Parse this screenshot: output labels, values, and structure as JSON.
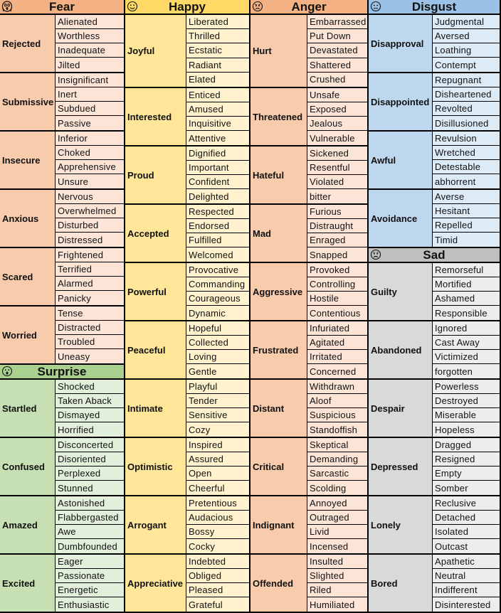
{
  "columns": [
    {
      "sections": [
        {
          "title": "Fear",
          "emoji": "scream-face",
          "colors": {
            "header": "#f4b183",
            "primary": "#f8cbad",
            "secondary": "#fce4d6"
          },
          "groups": [
            {
              "primary": "Rejected",
              "secondary": [
                "Alienated",
                "Worthless",
                "Inadequate",
                "Jilted"
              ]
            },
            {
              "primary": "Submissive",
              "secondary": [
                "Insignificant",
                "Inert",
                "Subdued",
                "Passive"
              ]
            },
            {
              "primary": "Insecure",
              "secondary": [
                "Inferior",
                "Choked",
                "Apprehensive",
                "Unsure"
              ]
            },
            {
              "primary": "Anxious",
              "secondary": [
                "Nervous",
                "Overwhelmed",
                "Disturbed",
                "Distressed"
              ]
            },
            {
              "primary": "Scared",
              "secondary": [
                "Frightened",
                "Terrified",
                "Alarmed",
                "Panicky"
              ]
            },
            {
              "primary": "Worried",
              "secondary": [
                "Tense",
                "Distracted",
                "Troubled",
                "Uneasy"
              ]
            }
          ]
        },
        {
          "title": "Surprise",
          "emoji": "surprised-face",
          "colors": {
            "header": "#a9d08e",
            "primary": "#c6e0b4",
            "secondary": "#e2efda"
          },
          "groups": [
            {
              "primary": "Startled",
              "secondary": [
                "Shocked",
                "Taken Aback",
                "Dismayed",
                "Horrified"
              ]
            },
            {
              "primary": "Confused",
              "secondary": [
                "Disconcerted",
                "Disoriented",
                "Perplexed",
                "Stunned"
              ]
            },
            {
              "primary": "Amazed",
              "secondary": [
                "Astonished",
                "Flabbergasted",
                "Awe",
                "Dumbfounded"
              ]
            },
            {
              "primary": "Excited",
              "secondary": [
                "Eager",
                "Passionate",
                "Energetic",
                "Enthusiastic"
              ]
            }
          ]
        }
      ]
    },
    {
      "sections": [
        {
          "title": "Happy",
          "emoji": "smiling-face",
          "colors": {
            "header": "#ffd966",
            "primary": "#ffe699",
            "secondary": "#fff2cc"
          },
          "groups": [
            {
              "primary": "Joyful",
              "secondary": [
                "Liberated",
                "Thrilled",
                "Ecstatic",
                "Radiant",
                "Elated"
              ]
            },
            {
              "primary": "Interested",
              "secondary": [
                "Enticed",
                "Amused",
                "Inquisitive",
                "Attentive"
              ]
            },
            {
              "primary": "Proud",
              "secondary": [
                "Dignified",
                "Important",
                "Confident",
                "Delighted"
              ]
            },
            {
              "primary": "Accepted",
              "secondary": [
                "Respected",
                "Endorsed",
                "Fulfilled",
                "Welcomed"
              ]
            },
            {
              "primary": "Powerful",
              "secondary": [
                "Provocative",
                "Commanding",
                "Courageous",
                "Dynamic"
              ]
            },
            {
              "primary": "Peaceful",
              "secondary": [
                "Hopeful",
                "Collected",
                "Loving",
                "Gentle"
              ]
            },
            {
              "primary": "Intimate",
              "secondary": [
                "Playful",
                "Tender",
                "Sensitive",
                "Cozy"
              ]
            },
            {
              "primary": "Optimistic",
              "secondary": [
                "Inspired",
                "Assured",
                "Open",
                "Cheerful"
              ]
            },
            {
              "primary": "Arrogant",
              "secondary": [
                "Pretentious",
                "Audacious",
                "Bossy",
                "Cocky"
              ]
            },
            {
              "primary": "Appreciative",
              "secondary": [
                "Indebted",
                "Obliged",
                "Pleased",
                "Grateful"
              ]
            }
          ]
        }
      ]
    },
    {
      "sections": [
        {
          "title": "Anger",
          "emoji": "angry-face",
          "colors": {
            "header": "#f4b183",
            "primary": "#f8cbad",
            "secondary": "#fce4d6"
          },
          "groups": [
            {
              "primary": "Hurt",
              "secondary": [
                "Embarrassed",
                "Put Down",
                "Devastated",
                "Shattered",
                "Crushed"
              ]
            },
            {
              "primary": "Threatened",
              "secondary": [
                "Unsafe",
                "Exposed",
                "Jealous",
                "Vulnerable"
              ]
            },
            {
              "primary": "Hateful",
              "secondary": [
                "Sickened",
                "Resentful",
                "Violated",
                "bitter"
              ]
            },
            {
              "primary": "Mad",
              "secondary": [
                "Furious",
                "Distraught",
                "Enraged",
                "Snapped"
              ]
            },
            {
              "primary": "Aggressive",
              "secondary": [
                "Provoked",
                "Controlling",
                "Hostile",
                "Contentious"
              ]
            },
            {
              "primary": "Frustrated",
              "secondary": [
                "Infuriated",
                "Agitated",
                "Irritated",
                "Concerned"
              ]
            },
            {
              "primary": "Distant",
              "secondary": [
                "Withdrawn",
                "Aloof",
                "Suspicious",
                "Standoffish"
              ]
            },
            {
              "primary": "Critical",
              "secondary": [
                "Skeptical",
                "Demanding",
                "Sarcastic",
                "Scolding"
              ]
            },
            {
              "primary": "Indignant",
              "secondary": [
                "Annoyed",
                "Outraged",
                "Livid",
                "Incensed"
              ]
            },
            {
              "primary": "Offended",
              "secondary": [
                "Insulted",
                "Slighted",
                "Riled",
                "Humiliated"
              ]
            }
          ]
        }
      ]
    },
    {
      "sections": [
        {
          "title": "Disgust",
          "emoji": "worried-face",
          "colors": {
            "header": "#9bc2e6",
            "primary": "#bdd7ee",
            "secondary": "#ddebf7"
          },
          "groups": [
            {
              "primary": "Disapproval",
              "secondary": [
                "Judgmental",
                "Aversed",
                "Loathing",
                "Contempt"
              ]
            },
            {
              "primary": "Disappointed",
              "secondary": [
                "Repugnant",
                "Disheartened",
                "Revolted",
                "Disillusioned"
              ]
            },
            {
              "primary": "Awful",
              "secondary": [
                "Revulsion",
                "Wretched",
                "Detestable",
                "abhorrent"
              ]
            },
            {
              "primary": "Avoidance",
              "secondary": [
                "Averse",
                "Hesitant",
                "Repelled",
                "Timid"
              ]
            }
          ]
        },
        {
          "title": "Sad",
          "emoji": "sad-face",
          "colors": {
            "header": "#bfbfbf",
            "primary": "#d9d9d9",
            "secondary": "#ededed"
          },
          "groups": [
            {
              "primary": "Guilty",
              "secondary": [
                "Remorseful",
                "Mortified",
                "Ashamed",
                "Responsible"
              ]
            },
            {
              "primary": "Abandoned",
              "secondary": [
                "Ignored",
                "Cast Away",
                "Victimized",
                "forgotten"
              ]
            },
            {
              "primary": "Despair",
              "secondary": [
                "Powerless",
                "Destroyed",
                "Miserable",
                "Hopeless"
              ]
            },
            {
              "primary": "Depressed",
              "secondary": [
                "Dragged",
                "Resigned",
                "Empty",
                "Somber"
              ]
            },
            {
              "primary": "Lonely",
              "secondary": [
                "Reclusive",
                "Detached",
                "Isolated",
                "Outcast"
              ]
            },
            {
              "primary": "Bored",
              "secondary": [
                "Apathetic",
                "Neutral",
                "Indifferent",
                "Disinterested"
              ]
            }
          ]
        }
      ]
    }
  ]
}
